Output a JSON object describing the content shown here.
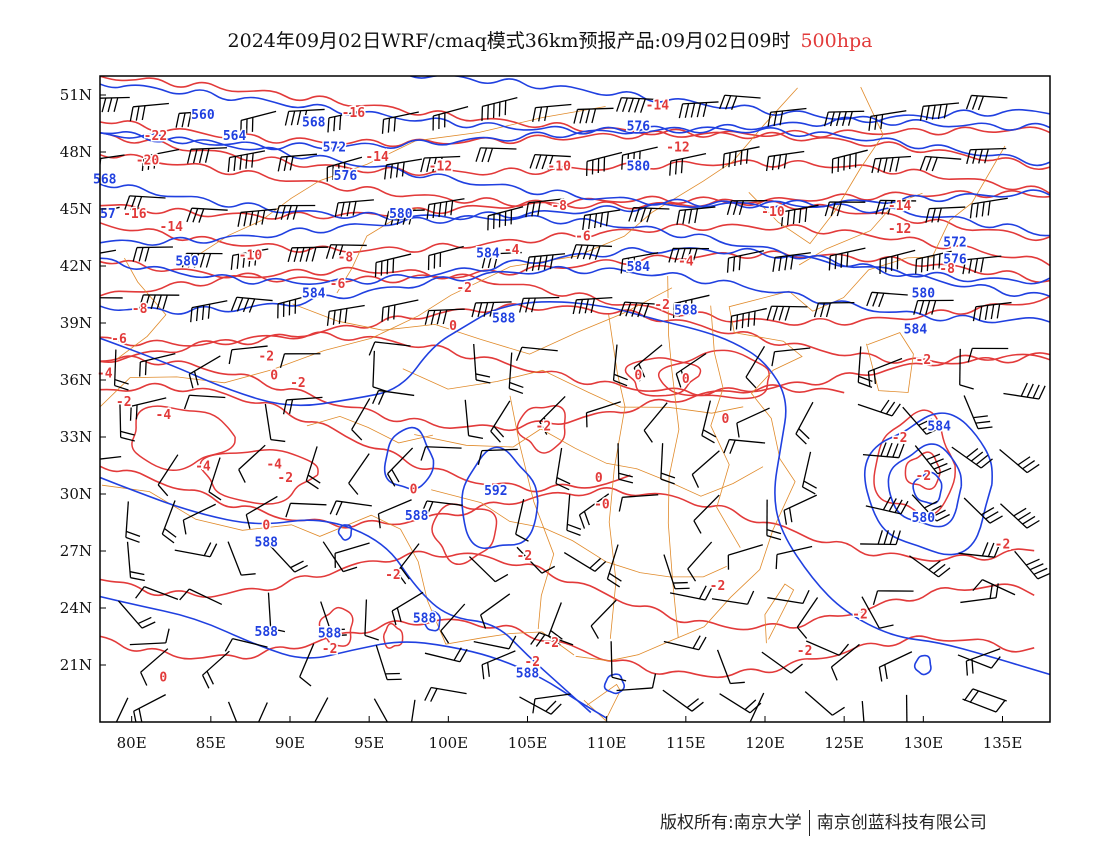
{
  "header": {
    "title": "2024年09月02日WRF/cmaq模式36km预报产品:09月02日09时",
    "level": "500hpa",
    "level_color": "#e23a3a"
  },
  "footer": {
    "copyright": "版权所有:南京大学",
    "company": "南京创蓝科技有限公司"
  },
  "map": {
    "lon_range": [
      78,
      138
    ],
    "lat_range": [
      18,
      52
    ],
    "x_ticks": [
      "80E",
      "85E",
      "90E",
      "95E",
      "100E",
      "105E",
      "110E",
      "115E",
      "120E",
      "125E",
      "130E",
      "135E"
    ],
    "y_ticks": [
      "51N",
      "48N",
      "45N",
      "42N",
      "39N",
      "36N",
      "33N",
      "30N",
      "27N",
      "24N",
      "21N"
    ],
    "colors": {
      "geopotential": "#2040e0",
      "temperature": "#e23a3a",
      "boundaries": "#e08a2a",
      "wind_barbs": "#000000"
    },
    "geopotential_labels": [
      {
        "text": "560",
        "lon": 84.5,
        "lat": 50.0
      },
      {
        "text": "564",
        "lon": 86.5,
        "lat": 48.9
      },
      {
        "text": "568",
        "lon": 91.5,
        "lat": 49.6
      },
      {
        "text": "572",
        "lon": 92.8,
        "lat": 48.3
      },
      {
        "text": "576",
        "lon": 93.5,
        "lat": 46.8
      },
      {
        "text": "568",
        "lon": 78.3,
        "lat": 46.6
      },
      {
        "text": "57",
        "lon": 78.5,
        "lat": 44.8
      },
      {
        "text": "580",
        "lon": 97.0,
        "lat": 44.8
      },
      {
        "text": "580",
        "lon": 83.5,
        "lat": 42.3
      },
      {
        "text": "584",
        "lon": 91.5,
        "lat": 40.6
      },
      {
        "text": "584",
        "lon": 102.5,
        "lat": 42.7
      },
      {
        "text": "584",
        "lon": 112.0,
        "lat": 42.0
      },
      {
        "text": "576",
        "lon": 112.0,
        "lat": 49.4
      },
      {
        "text": "580",
        "lon": 112.0,
        "lat": 47.3
      },
      {
        "text": "588",
        "lon": 103.5,
        "lat": 39.3
      },
      {
        "text": "588",
        "lon": 115.0,
        "lat": 39.7
      },
      {
        "text": "572",
        "lon": 132.0,
        "lat": 43.3
      },
      {
        "text": "576",
        "lon": 132.0,
        "lat": 42.4
      },
      {
        "text": "580",
        "lon": 130.0,
        "lat": 40.6
      },
      {
        "text": "584",
        "lon": 129.5,
        "lat": 38.7
      },
      {
        "text": "584",
        "lon": 131.0,
        "lat": 33.6
      },
      {
        "text": "580",
        "lon": 130.0,
        "lat": 28.8
      },
      {
        "text": "592",
        "lon": 103.0,
        "lat": 30.2
      },
      {
        "text": "588",
        "lon": 98.0,
        "lat": 28.9
      },
      {
        "text": "588",
        "lon": 88.5,
        "lat": 27.5
      },
      {
        "text": "588",
        "lon": 88.5,
        "lat": 22.8
      },
      {
        "text": "588",
        "lon": 92.5,
        "lat": 22.7
      },
      {
        "text": "588",
        "lon": 98.5,
        "lat": 23.5
      },
      {
        "text": "588",
        "lon": 105.0,
        "lat": 20.6
      }
    ],
    "temperature_labels": [
      {
        "text": "-22",
        "lon": 81.5,
        "lat": 48.9
      },
      {
        "text": "-20",
        "lon": 81.0,
        "lat": 47.6
      },
      {
        "text": "-16",
        "lon": 80.2,
        "lat": 44.8
      },
      {
        "text": "-14",
        "lon": 82.5,
        "lat": 44.1
      },
      {
        "text": "-16",
        "lon": 94.0,
        "lat": 50.1
      },
      {
        "text": "-14",
        "lon": 95.5,
        "lat": 47.8
      },
      {
        "text": "-12",
        "lon": 99.5,
        "lat": 47.3
      },
      {
        "text": "-10",
        "lon": 87.5,
        "lat": 42.6
      },
      {
        "text": "-8",
        "lon": 93.5,
        "lat": 42.5
      },
      {
        "text": "-6",
        "lon": 93.0,
        "lat": 41.1
      },
      {
        "text": "-8",
        "lon": 80.5,
        "lat": 39.8
      },
      {
        "text": "-6",
        "lon": 79.2,
        "lat": 38.2
      },
      {
        "text": "-4",
        "lon": 78.3,
        "lat": 36.4
      },
      {
        "text": "-2",
        "lon": 79.5,
        "lat": 34.9
      },
      {
        "text": "-2",
        "lon": 88.5,
        "lat": 37.3
      },
      {
        "text": "-2",
        "lon": 90.5,
        "lat": 35.9
      },
      {
        "text": "0",
        "lon": 89.0,
        "lat": 36.3
      },
      {
        "text": "-4",
        "lon": 82.0,
        "lat": 34.2
      },
      {
        "text": "-4",
        "lon": 84.5,
        "lat": 31.5
      },
      {
        "text": "-4",
        "lon": 89.0,
        "lat": 31.6
      },
      {
        "text": "-2",
        "lon": 89.7,
        "lat": 30.9
      },
      {
        "text": "0",
        "lon": 88.5,
        "lat": 28.4
      },
      {
        "text": "-14",
        "lon": 113.2,
        "lat": 50.5
      },
      {
        "text": "-12",
        "lon": 114.5,
        "lat": 48.3
      },
      {
        "text": "-10",
        "lon": 107.0,
        "lat": 47.3
      },
      {
        "text": "-8",
        "lon": 107.0,
        "lat": 45.2
      },
      {
        "text": "-6",
        "lon": 108.5,
        "lat": 43.6
      },
      {
        "text": "-4",
        "lon": 104.0,
        "lat": 42.9
      },
      {
        "text": "-4",
        "lon": 115.0,
        "lat": 42.3
      },
      {
        "text": "-2",
        "lon": 101.0,
        "lat": 40.9
      },
      {
        "text": "0",
        "lon": 100.3,
        "lat": 38.9
      },
      {
        "text": "-2",
        "lon": 113.5,
        "lat": 40.0
      },
      {
        "text": "-10",
        "lon": 120.5,
        "lat": 44.9
      },
      {
        "text": "-14",
        "lon": 128.5,
        "lat": 45.2
      },
      {
        "text": "-12",
        "lon": 128.5,
        "lat": 44.0
      },
      {
        "text": "-8",
        "lon": 131.5,
        "lat": 41.9
      },
      {
        "text": "-2",
        "lon": 130.0,
        "lat": 37.1
      },
      {
        "text": "0",
        "lon": 112.0,
        "lat": 36.3
      },
      {
        "text": "0",
        "lon": 115.0,
        "lat": 36.1
      },
      {
        "text": "0",
        "lon": 117.5,
        "lat": 34.0
      },
      {
        "text": "-2",
        "lon": 106.0,
        "lat": 33.6
      },
      {
        "text": "0",
        "lon": 97.8,
        "lat": 30.3
      },
      {
        "text": "0",
        "lon": 109.5,
        "lat": 30.9
      },
      {
        "text": "-0",
        "lon": 109.7,
        "lat": 29.5
      },
      {
        "text": "-2",
        "lon": 104.8,
        "lat": 26.8
      },
      {
        "text": "-2",
        "lon": 96.5,
        "lat": 25.8
      },
      {
        "text": "-2",
        "lon": 117.0,
        "lat": 25.2
      },
      {
        "text": "-2",
        "lon": 106.5,
        "lat": 22.2
      },
      {
        "text": "-2",
        "lon": 105.3,
        "lat": 21.2
      },
      {
        "text": "-2",
        "lon": 92.5,
        "lat": 21.9
      },
      {
        "text": "-2",
        "lon": 126.0,
        "lat": 23.7
      },
      {
        "text": "-2",
        "lon": 122.5,
        "lat": 21.8
      },
      {
        "text": "-2",
        "lon": 135.0,
        "lat": 27.4
      },
      {
        "text": "-2",
        "lon": 128.5,
        "lat": 33.0
      },
      {
        "text": "-2",
        "lon": 130.0,
        "lat": 31.0
      },
      {
        "text": "0",
        "lon": 82.0,
        "lat": 20.4
      }
    ]
  }
}
